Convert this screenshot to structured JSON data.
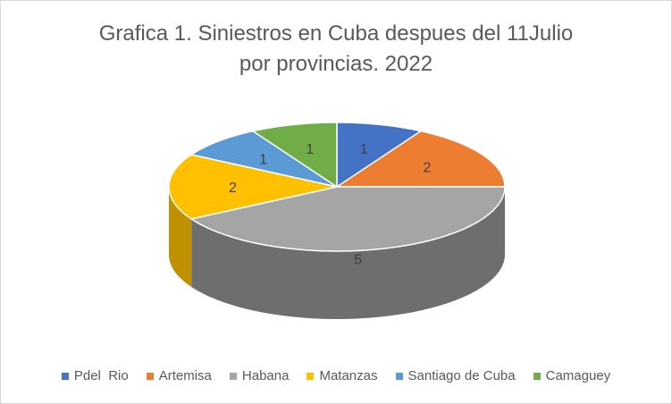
{
  "chart_data": {
    "type": "pie",
    "title_line1": "Grafica 1. Siniestros en Cuba despues del 11Julio",
    "title_line2": "por provincias. 2022",
    "categories": [
      "Pdel  Rio",
      "Artemisa",
      "Habana",
      "Matanzas",
      "Santiago de Cuba",
      "Camaguey"
    ],
    "values": [
      1,
      2,
      5,
      2,
      1,
      1
    ],
    "colors": [
      "#4472c4",
      "#ed7d31",
      "#a5a5a5",
      "#ffc000",
      "#5b9bd5",
      "#70ad47"
    ],
    "side_colors": [
      "#2f5597",
      "#ae5a21",
      "#6e6e6e",
      "#bf9000",
      "#41719c",
      "#507e32"
    ],
    "legend_position": "bottom",
    "style": "3d-pie"
  }
}
